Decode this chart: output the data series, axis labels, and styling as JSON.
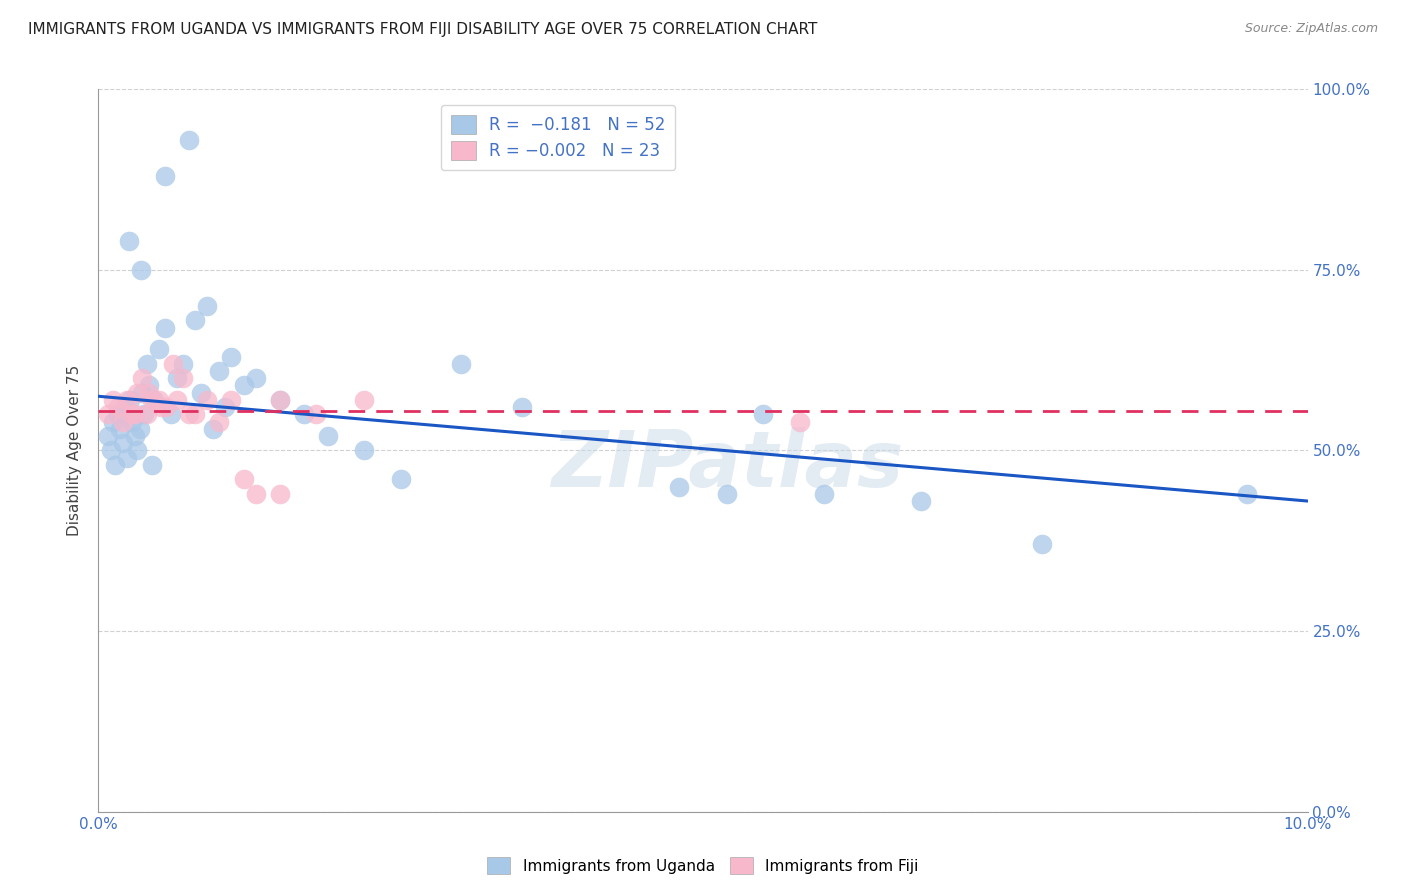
{
  "title": "IMMIGRANTS FROM UGANDA VS IMMIGRANTS FROM FIJI DISABILITY AGE OVER 75 CORRELATION CHART",
  "source": "Source: ZipAtlas.com",
  "ylabel_label": "Disability Age Over 75",
  "xlim": [
    0.0,
    10.0
  ],
  "ylim": [
    0.0,
    100.0
  ],
  "uganda_color": "#a8c8e8",
  "fiji_color": "#f8b8cc",
  "trendline_uganda_color": "#1a56c4",
  "trendline_fiji_color": "#e03060",
  "watermark": "ZIPatlas",
  "uganda_x": [
    0.08,
    0.1,
    0.12,
    0.14,
    0.16,
    0.18,
    0.2,
    0.22,
    0.24,
    0.26,
    0.28,
    0.3,
    0.32,
    0.34,
    0.36,
    0.38,
    0.4,
    0.42,
    0.44,
    0.46,
    0.5,
    0.55,
    0.6,
    0.65,
    0.7,
    0.8,
    0.85,
    0.9,
    0.95,
    1.0,
    1.05,
    1.1,
    1.2,
    1.3,
    1.5,
    1.7,
    1.9,
    2.2,
    2.5,
    3.0,
    3.5,
    4.8,
    5.2,
    5.5,
    6.0,
    6.8,
    7.8,
    9.5,
    0.25,
    0.35,
    0.55,
    0.75
  ],
  "uganda_y": [
    52,
    50,
    54,
    48,
    55,
    53,
    51,
    56,
    49,
    57,
    54,
    52,
    50,
    53,
    58,
    55,
    62,
    59,
    48,
    57,
    64,
    67,
    55,
    60,
    62,
    68,
    58,
    70,
    53,
    61,
    56,
    63,
    59,
    60,
    57,
    55,
    52,
    50,
    46,
    62,
    56,
    45,
    44,
    55,
    44,
    43,
    37,
    44,
    79,
    75,
    88,
    93
  ],
  "fiji_x": [
    0.08,
    0.12,
    0.16,
    0.2,
    0.24,
    0.28,
    0.32,
    0.36,
    0.4,
    0.44,
    0.5,
    0.56,
    0.62,
    0.7,
    0.8,
    0.9,
    1.0,
    1.1,
    1.2,
    1.5,
    1.8,
    2.2,
    5.8
  ],
  "fiji_y": [
    55,
    57,
    56,
    54,
    57,
    55,
    58,
    60,
    55,
    57,
    57,
    56,
    62,
    60,
    55,
    57,
    54,
    57,
    46,
    57,
    55,
    57,
    54
  ],
  "fiji_x2": [
    0.3,
    0.42,
    0.52,
    0.65,
    0.75,
    1.3,
    1.5
  ],
  "fiji_y2": [
    55,
    58,
    56,
    57,
    55,
    44,
    44
  ],
  "trendline_uganda_x0": 0.0,
  "trendline_uganda_y0": 57.5,
  "trendline_uganda_x1": 10.0,
  "trendline_uganda_y1": 43.0,
  "trendline_fiji_x0": 0.0,
  "trendline_fiji_y0": 55.5,
  "trendline_fiji_x1": 10.0,
  "trendline_fiji_y1": 55.5
}
